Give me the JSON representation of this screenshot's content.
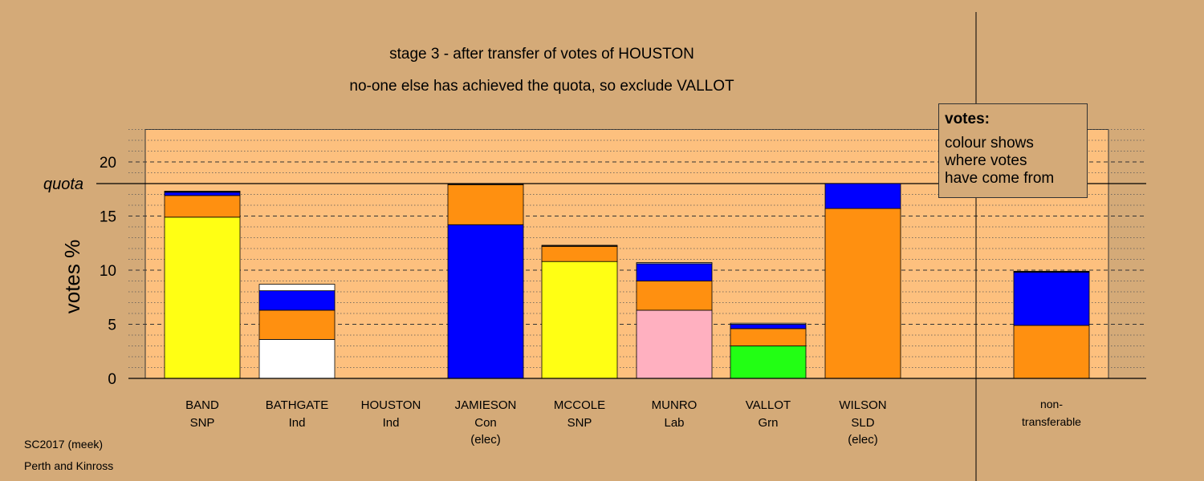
{
  "chart_data": {
    "type": "bar",
    "stacked": true,
    "title": "stage 3 - after transfer of votes of HOUSTON",
    "subtitle": "no-one else has achieved the quota, so exclude VALLOT",
    "ylabel": "votes %",
    "ylim": [
      0,
      23
    ],
    "yticks": [
      0,
      5,
      10,
      15,
      20
    ],
    "quota": 18,
    "quota_label": "quota",
    "grid": true,
    "legend_placement": "top-right",
    "candidates": [
      {
        "name": "BAND",
        "party": "SNP",
        "status": "",
        "segments": [
          {
            "color": "#ffff14",
            "value": 14.9
          },
          {
            "color": "#ff9010",
            "value": 2.0
          },
          {
            "color": "#0000ff",
            "value": 0.3
          },
          {
            "color": "#1a1a1a",
            "value": 0.1
          }
        ]
      },
      {
        "name": "BATHGATE",
        "party": "Ind",
        "status": "",
        "segments": [
          {
            "color": "#ffffff",
            "value": 3.6
          },
          {
            "color": "#ff9010",
            "value": 2.7
          },
          {
            "color": "#0000ff",
            "value": 1.8
          },
          {
            "color": "#ffffff",
            "value": 0.6
          }
        ]
      },
      {
        "name": "HOUSTON",
        "party": "Ind",
        "status": "",
        "segments": []
      },
      {
        "name": "JAMIESON",
        "party": "Con",
        "status": "(elec)",
        "segments": [
          {
            "color": "#0000ff",
            "value": 14.2
          },
          {
            "color": "#ff9010",
            "value": 3.7
          },
          {
            "color": "#1a1a1a",
            "value": 0.1
          }
        ]
      },
      {
        "name": "MCCOLE",
        "party": "SNP",
        "status": "",
        "segments": [
          {
            "color": "#ffff14",
            "value": 10.8
          },
          {
            "color": "#ff9010",
            "value": 1.4
          },
          {
            "color": "#1a1a1a",
            "value": 0.1
          }
        ]
      },
      {
        "name": "MUNRO",
        "party": "Lab",
        "status": "",
        "segments": [
          {
            "color": "#ffb0c0",
            "value": 6.3
          },
          {
            "color": "#ff9010",
            "value": 2.7
          },
          {
            "color": "#0000ff",
            "value": 1.6
          },
          {
            "color": "#ffffff",
            "value": 0.1
          }
        ]
      },
      {
        "name": "VALLOT",
        "party": "Grn",
        "status": "",
        "segments": [
          {
            "color": "#22ff14",
            "value": 3.0
          },
          {
            "color": "#ff9010",
            "value": 1.6
          },
          {
            "color": "#0000ff",
            "value": 0.4
          },
          {
            "color": "#ffffff",
            "value": 0.1
          }
        ]
      },
      {
        "name": "WILSON",
        "party": "SLD",
        "status": "(elec)",
        "segments": [
          {
            "color": "#ff9010",
            "value": 15.7
          },
          {
            "color": "#0000ff",
            "value": 2.3
          }
        ]
      }
    ],
    "nontransferable": {
      "label1": "non-",
      "label2": "transferable",
      "segments": [
        {
          "color": "#ff9010",
          "value": 4.9
        },
        {
          "color": "#0000ff",
          "value": 4.9
        },
        {
          "color": "#1a1a1a",
          "value": 0.1
        }
      ]
    },
    "legend": {
      "title": "votes:",
      "lines": [
        "colour shows",
        "where votes",
        "have come from"
      ]
    }
  },
  "footer": {
    "line1": "SC2017 (meek)",
    "line2": "Perth and Kinross"
  }
}
